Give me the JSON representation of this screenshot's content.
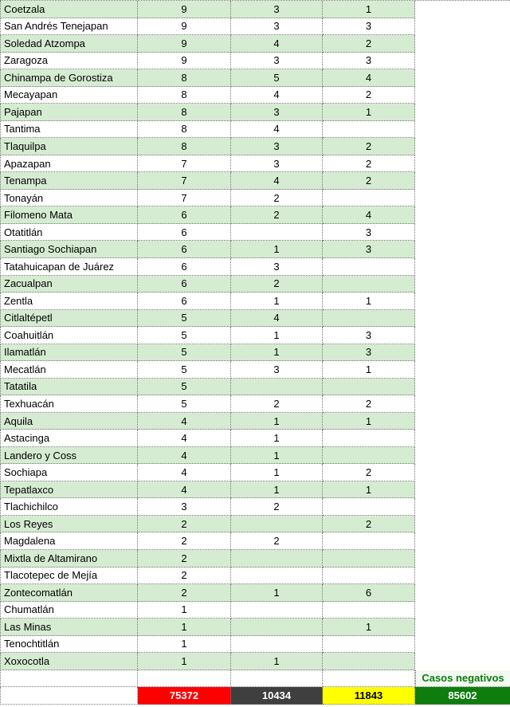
{
  "table": {
    "rows": [
      [
        "Coetzala",
        "9",
        "3",
        "1"
      ],
      [
        "San Andrés Tenejapan",
        "9",
        "3",
        "3"
      ],
      [
        "Soledad Atzompa",
        "9",
        "4",
        "2"
      ],
      [
        "Zaragoza",
        "9",
        "3",
        "3"
      ],
      [
        "Chinampa de Gorostiza",
        "8",
        "5",
        "4"
      ],
      [
        "Mecayapan",
        "8",
        "4",
        "2"
      ],
      [
        "Pajapan",
        "8",
        "3",
        "1"
      ],
      [
        "Tantima",
        "8",
        "4",
        ""
      ],
      [
        "Tlaquilpa",
        "8",
        "3",
        "2"
      ],
      [
        "Apazapan",
        "7",
        "3",
        "2"
      ],
      [
        "Tenampa",
        "7",
        "4",
        "2"
      ],
      [
        "Tonayán",
        "7",
        "2",
        ""
      ],
      [
        "Filomeno Mata",
        "6",
        "2",
        "4"
      ],
      [
        "Otatitlán",
        "6",
        "",
        "3"
      ],
      [
        "Santiago Sochiapan",
        "6",
        "1",
        "3"
      ],
      [
        "Tatahuicapan de Juárez",
        "6",
        "3",
        ""
      ],
      [
        "Zacualpan",
        "6",
        "2",
        ""
      ],
      [
        "Zentla",
        "6",
        "1",
        "1"
      ],
      [
        "Citlaltépetl",
        "5",
        "4",
        ""
      ],
      [
        "Coahuitlán",
        "5",
        "1",
        "3"
      ],
      [
        "Ilamatlán",
        "5",
        "1",
        "3"
      ],
      [
        "Mecatlán",
        "5",
        "3",
        "1"
      ],
      [
        "Tatatila",
        "5",
        "",
        ""
      ],
      [
        "Texhuacán",
        "5",
        "2",
        "2"
      ],
      [
        "Aquila",
        "4",
        "1",
        "1"
      ],
      [
        "Astacinga",
        "4",
        "1",
        ""
      ],
      [
        "Landero y Coss",
        "4",
        "1",
        ""
      ],
      [
        "Sochiapa",
        "4",
        "1",
        "2"
      ],
      [
        "Tepatlaxco",
        "4",
        "1",
        "1"
      ],
      [
        "Tlachichilco",
        "3",
        "2",
        ""
      ],
      [
        "Los Reyes",
        "2",
        "",
        "2"
      ],
      [
        "Magdalena",
        "2",
        "2",
        ""
      ],
      [
        "Mixtla de Altamirano",
        "2",
        "",
        ""
      ],
      [
        "Tlacotepec de Mejía",
        "2",
        "",
        ""
      ],
      [
        "Zontecomatlán",
        "2",
        "1",
        "6"
      ],
      [
        "Chumatlán",
        "1",
        "",
        ""
      ],
      [
        "Las Minas",
        "1",
        "",
        "1"
      ],
      [
        "Tenochtitlán",
        "1",
        "",
        ""
      ],
      [
        "Xoxocotla",
        "1",
        "1",
        ""
      ]
    ],
    "negatives_label": "Casos negativos",
    "totals": {
      "col1": "75372",
      "col2": "10434",
      "col3": "11843",
      "negatives": "85602"
    }
  },
  "colors": {
    "rowGreen": "#d6ecd2",
    "totalRed": "#fe0000",
    "totalDark": "#3f3f3f",
    "totalYellow": "#ffff00",
    "totalGreen": "#0e7d0e",
    "negText": "#0b7b0c",
    "negBg": "#f3faf1",
    "border": "#777777"
  }
}
